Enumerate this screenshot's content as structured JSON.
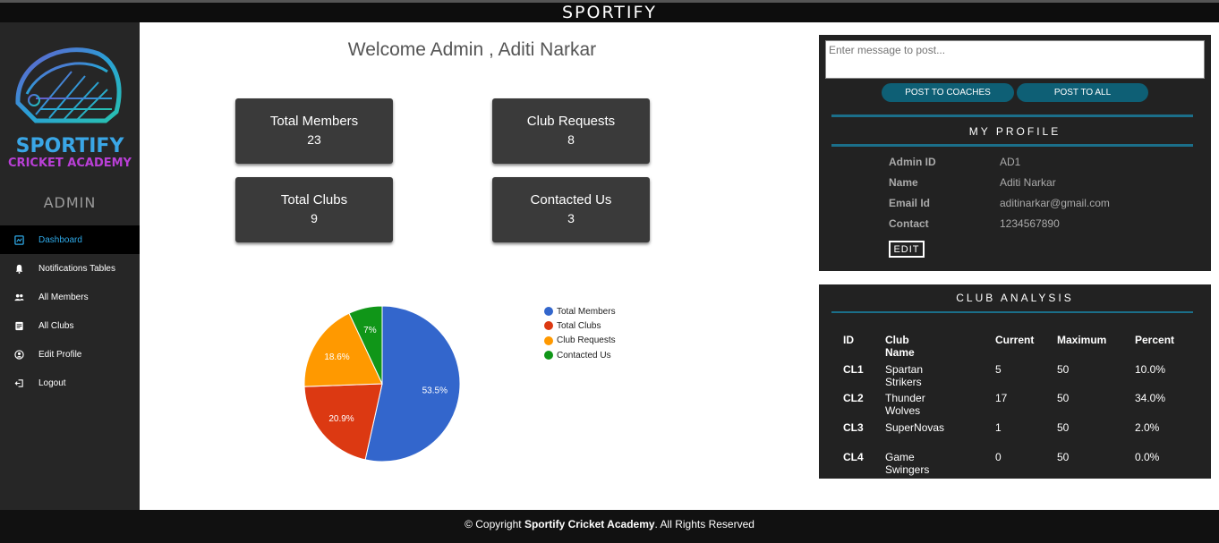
{
  "header": {
    "brand": "SPORTIFY"
  },
  "logo": {
    "line1": "SPORTIFY",
    "line2": "CRICKET ACADEMY"
  },
  "sidebar": {
    "role": "ADMIN",
    "items": [
      {
        "label": "Dashboard",
        "icon": "dashboard-icon",
        "active": true
      },
      {
        "label": "Notifications Tables",
        "icon": "bell-icon"
      },
      {
        "label": "All Members",
        "icon": "users-icon"
      },
      {
        "label": "All Clubs",
        "icon": "list-icon"
      },
      {
        "label": "Edit Profile",
        "icon": "user-circle-icon"
      },
      {
        "label": "Logout",
        "icon": "logout-icon"
      }
    ]
  },
  "main": {
    "welcome": "Welcome Admin , Aditi Narkar",
    "stats": [
      {
        "label": "Total Members",
        "value": "23"
      },
      {
        "label": "Club Requests",
        "value": "8"
      },
      {
        "label": "Total Clubs",
        "value": "9"
      },
      {
        "label": "Contacted Us",
        "value": "3"
      }
    ]
  },
  "chart_data": {
    "type": "pie",
    "slices": [
      {
        "label": "Total Members",
        "value": 23,
        "percent": "53.5%",
        "color": "#3366cc"
      },
      {
        "label": "Total Clubs",
        "value": 9,
        "percent": "20.9%",
        "color": "#dc3912"
      },
      {
        "label": "Club Requests",
        "value": 8,
        "percent": "18.6%",
        "color": "#ff9900"
      },
      {
        "label": "Contacted Us",
        "value": 3,
        "percent": "7%",
        "color": "#109618"
      }
    ],
    "legend": "right"
  },
  "messaging": {
    "placeholder": "Enter message to post...",
    "post_coaches": "POST TO COACHES",
    "post_all": "POST TO ALL"
  },
  "profile": {
    "title": "MY PROFILE",
    "fields": [
      {
        "key": "Admin ID",
        "value": "AD1"
      },
      {
        "key": "Name",
        "value": "Aditi Narkar"
      },
      {
        "key": "Email Id",
        "value": "aditinarkar@gmail.com"
      },
      {
        "key": "Contact",
        "value": "1234567890"
      }
    ],
    "edit_label": "EDIT"
  },
  "club_analysis": {
    "title": "CLUB ANALYSIS",
    "headers": [
      "ID",
      "Club Name",
      "Current",
      "Maximum",
      "Percent"
    ],
    "rows": [
      [
        "CL1",
        "Spartan Strikers",
        "5",
        "50",
        "10.0%"
      ],
      [
        "CL2",
        "Thunder Wolves",
        "17",
        "50",
        "34.0%"
      ],
      [
        "CL3",
        "SuperNovas",
        "1",
        "50",
        "2.0%"
      ],
      [
        "CL4",
        "Game Swingers",
        "0",
        "50",
        "0.0%"
      ]
    ]
  },
  "footer": {
    "prefix": "© Copyright ",
    "bold": "Sportify Cricket Academy",
    "suffix": ". All Rights Reserved"
  },
  "colors": {
    "accent": "#2ea8e6",
    "button": "#0e5f75",
    "panel": "#222222",
    "sidebar": "#262626"
  }
}
